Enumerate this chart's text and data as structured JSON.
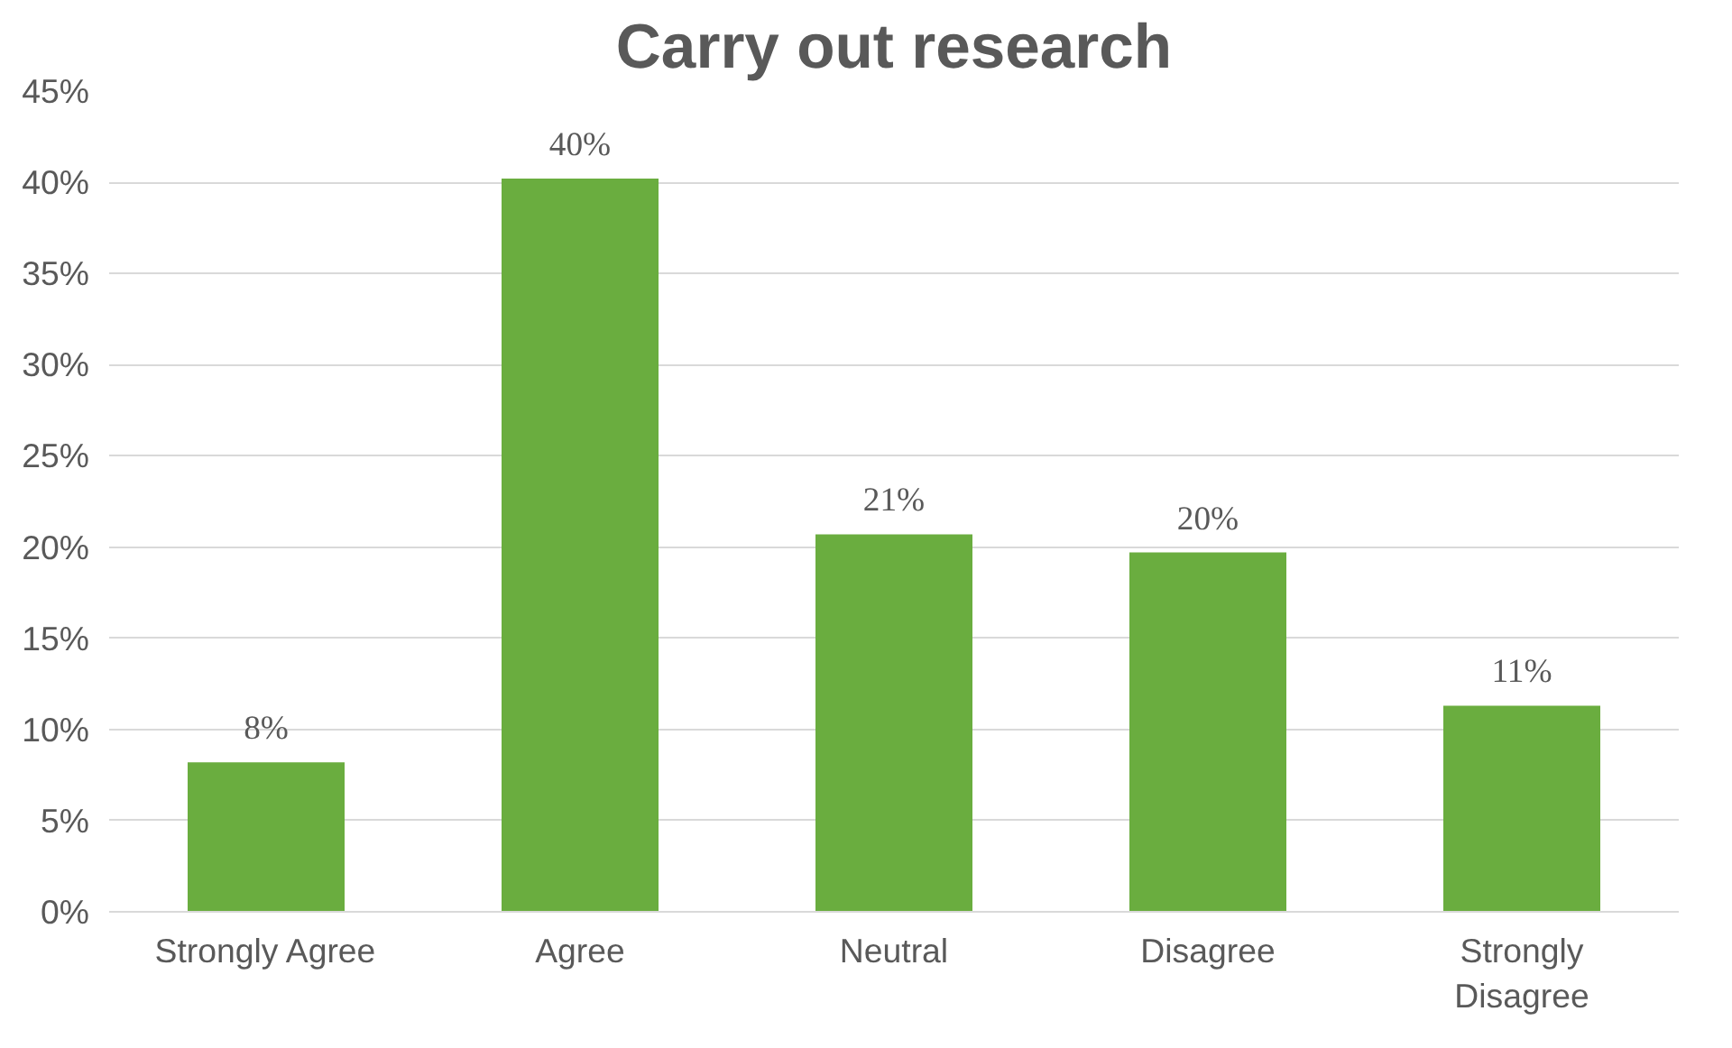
{
  "chart_data": {
    "type": "bar",
    "title": "Carry out research",
    "categories": [
      "Strongly Agree",
      "Agree",
      "Neutral",
      "Disagree",
      "Strongly Disagree"
    ],
    "values": [
      8.2,
      40.2,
      20.7,
      19.7,
      11.3
    ],
    "value_labels": [
      "8%",
      "40%",
      "21%",
      "20%",
      "11%"
    ],
    "color": "#6aad3f",
    "ylim": [
      0,
      45
    ],
    "yticks": [
      {
        "value": 0,
        "label": "0%"
      },
      {
        "value": 5,
        "label": "5%"
      },
      {
        "value": 10,
        "label": "10%"
      },
      {
        "value": 15,
        "label": "15%"
      },
      {
        "value": 20,
        "label": "20%"
      },
      {
        "value": 25,
        "label": "25%"
      },
      {
        "value": 30,
        "label": "30%"
      },
      {
        "value": 35,
        "label": "35%"
      },
      {
        "value": 40,
        "label": "40%"
      },
      {
        "value": 45,
        "label": "45%"
      }
    ],
    "grid": "y"
  }
}
